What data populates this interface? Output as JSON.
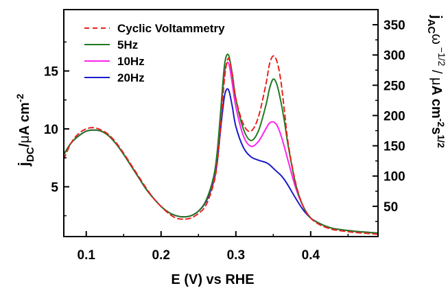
{
  "chart_data": {
    "type": "line",
    "title": "",
    "xlabel": "E (V) vs RHE",
    "ylabel_left": "jDC/μA cm-2",
    "ylabel_right": "jACω^-1/2 / μA cm-2 s1/2",
    "xlim": [
      0.07,
      0.49
    ],
    "ylim_left": [
      0.7,
      20.3
    ],
    "ylim_right": [
      0,
      375
    ],
    "x_ticks": [
      "0.1",
      "0.2",
      "0.3",
      "0.4"
    ],
    "x_tick_values": [
      0.1,
      0.2,
      0.3,
      0.4
    ],
    "y_left_ticks": [
      "5",
      "10",
      "15"
    ],
    "y_left_tick_values": [
      5,
      10,
      15
    ],
    "y_right_ticks": [
      "50",
      "100",
      "150",
      "200",
      "250",
      "300",
      "350"
    ],
    "y_right_tick_values": [
      50,
      100,
      150,
      200,
      250,
      300,
      350
    ],
    "legend_position": "top-left",
    "grid": false,
    "series": [
      {
        "name": "Cyclic Voltammetry",
        "color": "#e8211d",
        "dash": "dashed",
        "axis": "left",
        "x": [
          0.07,
          0.08,
          0.09,
          0.1,
          0.11,
          0.12,
          0.13,
          0.14,
          0.15,
          0.16,
          0.17,
          0.18,
          0.19,
          0.2,
          0.21,
          0.22,
          0.23,
          0.24,
          0.25,
          0.26,
          0.27,
          0.275,
          0.28,
          0.285,
          0.29,
          0.295,
          0.3,
          0.31,
          0.32,
          0.33,
          0.34,
          0.345,
          0.35,
          0.355,
          0.36,
          0.365,
          0.37,
          0.38,
          0.39,
          0.4,
          0.41,
          0.42,
          0.43,
          0.44,
          0.46,
          0.48,
          0.49
        ],
        "y": [
          7.4,
          8.8,
          9.6,
          10.0,
          10.1,
          9.9,
          9.5,
          8.8,
          7.9,
          6.9,
          5.9,
          4.9,
          4.0,
          3.3,
          2.7,
          2.3,
          2.2,
          2.3,
          2.7,
          3.4,
          5.2,
          7.0,
          10.5,
          14.5,
          16.1,
          14.8,
          12.6,
          10.4,
          9.8,
          11.0,
          13.8,
          15.6,
          16.3,
          15.8,
          14.2,
          11.5,
          8.7,
          5.3,
          3.3,
          2.3,
          1.8,
          1.5,
          1.3,
          1.2,
          1.05,
          0.95,
          0.9
        ]
      },
      {
        "name": "5Hz",
        "color": "#1f7a1f",
        "dash": "solid",
        "axis": "left",
        "x": [
          0.07,
          0.08,
          0.09,
          0.1,
          0.11,
          0.12,
          0.13,
          0.14,
          0.15,
          0.16,
          0.17,
          0.18,
          0.19,
          0.2,
          0.21,
          0.22,
          0.23,
          0.24,
          0.25,
          0.26,
          0.27,
          0.275,
          0.28,
          0.285,
          0.29,
          0.295,
          0.3,
          0.31,
          0.32,
          0.33,
          0.34,
          0.345,
          0.35,
          0.355,
          0.36,
          0.365,
          0.37,
          0.38,
          0.39,
          0.4,
          0.41,
          0.42,
          0.43,
          0.44,
          0.46,
          0.48,
          0.49
        ],
        "y": [
          7.8,
          8.8,
          9.4,
          9.8,
          9.9,
          9.8,
          9.4,
          8.7,
          7.8,
          6.8,
          5.8,
          4.8,
          4.0,
          3.3,
          2.8,
          2.5,
          2.4,
          2.5,
          2.9,
          3.8,
          5.8,
          8.0,
          11.8,
          15.6,
          16.4,
          14.8,
          12.6,
          10.0,
          9.0,
          9.8,
          12.0,
          13.5,
          14.3,
          13.8,
          12.4,
          10.6,
          8.5,
          5.2,
          3.3,
          2.3,
          1.9,
          1.6,
          1.4,
          1.3,
          1.15,
          1.05,
          1.0
        ]
      },
      {
        "name": "10Hz",
        "color": "#ff22ee",
        "dash": "solid",
        "axis": "left",
        "x": [
          0.07,
          0.08,
          0.09,
          0.1,
          0.11,
          0.12,
          0.13,
          0.14,
          0.15,
          0.16,
          0.17,
          0.18,
          0.19,
          0.2,
          0.21,
          0.22,
          0.23,
          0.24,
          0.25,
          0.26,
          0.27,
          0.275,
          0.28,
          0.285,
          0.29,
          0.295,
          0.3,
          0.31,
          0.32,
          0.33,
          0.34,
          0.345,
          0.35,
          0.355,
          0.36,
          0.365,
          0.37,
          0.38,
          0.39,
          0.4,
          0.41,
          0.42,
          0.43,
          0.44,
          0.46,
          0.48,
          0.49
        ],
        "y": [
          7.8,
          8.8,
          9.4,
          9.8,
          9.9,
          9.8,
          9.4,
          8.7,
          7.8,
          6.8,
          5.8,
          4.8,
          4.0,
          3.3,
          2.8,
          2.5,
          2.4,
          2.5,
          2.9,
          3.8,
          5.7,
          7.8,
          11.4,
          14.9,
          15.7,
          14.0,
          11.9,
          9.4,
          8.5,
          8.9,
          10.0,
          10.5,
          10.6,
          10.3,
          9.5,
          8.4,
          7.2,
          4.9,
          3.3,
          2.3,
          1.9,
          1.6,
          1.4,
          1.3,
          1.15,
          1.05,
          1.0
        ]
      },
      {
        "name": "20Hz",
        "color": "#1a1acc",
        "dash": "solid",
        "axis": "left",
        "x": [
          0.07,
          0.08,
          0.09,
          0.1,
          0.11,
          0.12,
          0.13,
          0.14,
          0.15,
          0.16,
          0.17,
          0.18,
          0.19,
          0.2,
          0.21,
          0.22,
          0.23,
          0.24,
          0.25,
          0.26,
          0.27,
          0.275,
          0.28,
          0.285,
          0.29,
          0.295,
          0.3,
          0.31,
          0.32,
          0.33,
          0.34,
          0.345,
          0.35,
          0.355,
          0.36,
          0.365,
          0.37,
          0.38,
          0.39,
          0.4,
          0.41,
          0.42,
          0.43,
          0.44,
          0.46,
          0.48,
          0.49
        ],
        "y": [
          7.8,
          8.8,
          9.4,
          9.8,
          9.9,
          9.8,
          9.4,
          8.7,
          7.8,
          6.8,
          5.8,
          4.8,
          4.0,
          3.3,
          2.8,
          2.5,
          2.4,
          2.5,
          2.9,
          3.7,
          5.4,
          7.1,
          10.2,
          12.9,
          13.4,
          12.0,
          10.2,
          8.4,
          7.6,
          7.3,
          7.1,
          6.9,
          6.6,
          6.3,
          6.0,
          5.6,
          5.1,
          4.0,
          3.0,
          2.3,
          1.9,
          1.6,
          1.4,
          1.3,
          1.15,
          1.05,
          1.0
        ]
      }
    ]
  }
}
